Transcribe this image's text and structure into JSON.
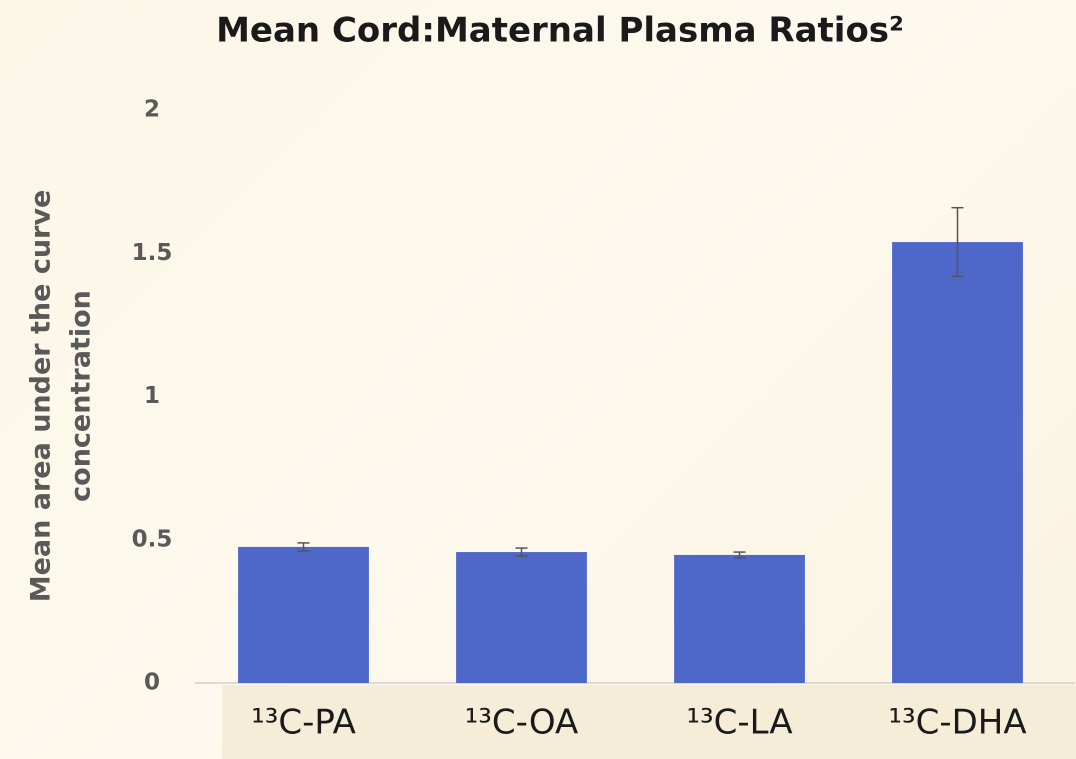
{
  "chart_data": {
    "type": "bar",
    "title": "Mean Cord:Maternal Plasma Ratios²",
    "y_label": [
      "Mean area under the curve",
      "concentration"
    ],
    "categories": [
      "¹³C-PA",
      "¹³C-OA",
      "¹³C-LA",
      "¹³C-DHA"
    ],
    "values": [
      0.475,
      0.457,
      0.447,
      1.539
    ],
    "errors": [
      0.014,
      0.014,
      0.01,
      0.12
    ],
    "color": "#4f67c8",
    "ylim": [
      0,
      2
    ],
    "yticks": [
      0,
      0.5,
      1,
      1.5,
      2
    ],
    "grid": false
  }
}
